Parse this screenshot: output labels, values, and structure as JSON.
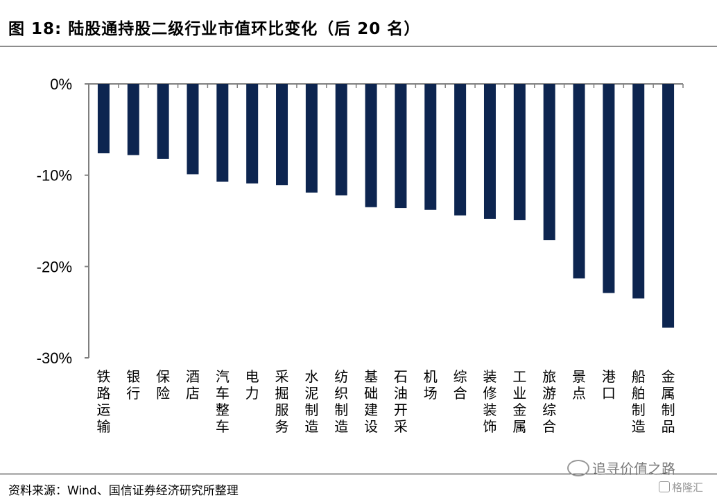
{
  "title": "图 18: 陆股通持股二级行业市值环比变化（后 20 名）",
  "source": "资料来源：Wind、国信证券经济研究所整理",
  "watermark": "追寻价值之路",
  "logo_text": "格隆汇",
  "colors": {
    "bar": "#0d2550",
    "axis": "#7f7f7f"
  },
  "chart_data": {
    "type": "bar",
    "title": "图 18: 陆股通持股二级行业市值环比变化（后 20 名）",
    "categories": [
      "铁路运输",
      "银行",
      "保险",
      "酒店",
      "汽车整车",
      "电力",
      "采掘服务",
      "水泥制造",
      "纺织制造",
      "基础建设",
      "石油开采",
      "机场",
      "综合",
      "装修装饰",
      "工业金属",
      "旅游综合",
      "景点",
      "港口",
      "船舶制造",
      "金属制品"
    ],
    "values": [
      -7.6,
      -7.8,
      -8.2,
      -9.9,
      -10.7,
      -10.9,
      -11.1,
      -11.9,
      -12.2,
      -13.5,
      -13.6,
      -13.8,
      -14.4,
      -14.8,
      -14.9,
      -17.1,
      -21.3,
      -22.9,
      -23.5,
      -26.7
    ],
    "yticks": [
      "0%",
      "-10%",
      "-20%",
      "-30%"
    ],
    "ylim": [
      -30,
      0
    ],
    "unit": "%",
    "grid": false,
    "legend": "none"
  }
}
